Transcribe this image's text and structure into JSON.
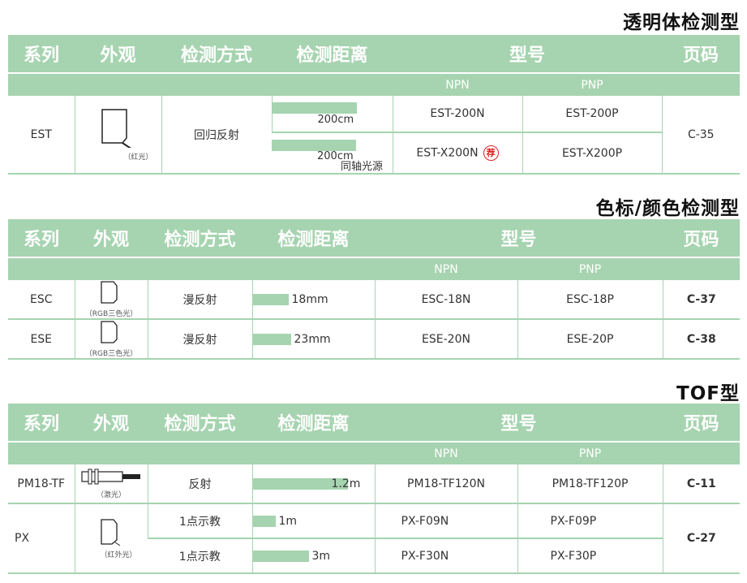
{
  "headers": {
    "series": "系列",
    "look": "外观",
    "method": "检测方式",
    "distance": "检测距离",
    "model": "型号",
    "page": "页码",
    "npn": "NPN",
    "pnp": "PNP"
  },
  "colors": {
    "header_green": "#a6d4b0",
    "recommend_red": "#d22"
  },
  "sections": [
    {
      "title": "透明体检测型",
      "rows": [
        {
          "series": "EST",
          "light": "（红光）",
          "method": "回归反射",
          "page": "C-35",
          "subrows": [
            {
              "distance": "200cm",
              "note": "",
              "npn": "EST-200N",
              "pnp": "EST-200P",
              "recommended": false
            },
            {
              "distance": "200cm",
              "note": "同轴光源",
              "npn": "EST-X200N",
              "pnp": "EST-X200P",
              "recommended": true,
              "badge": "荐"
            }
          ]
        }
      ]
    },
    {
      "title": "色标/颜色检测型",
      "rows": [
        {
          "series": "ESC",
          "light": "（RGB三色光）",
          "method": "漫反射",
          "distance": "18mm",
          "npn": "ESC-18N",
          "pnp": "ESC-18P",
          "page": "C-37"
        },
        {
          "series": "ESE",
          "light": "（RGB三色光）",
          "method": "漫反射",
          "distance": "23mm",
          "npn": "ESE-20N",
          "pnp": "ESE-20P",
          "page": "C-38"
        }
      ]
    },
    {
      "title": "TOF型",
      "rows": [
        {
          "series": "PM18-TF",
          "light": "（激光）",
          "method": "反射",
          "distance": "1.2m",
          "npn": "PM18-TF120N",
          "pnp": "PM18-TF120P",
          "page": "C-11"
        },
        {
          "series": "PX",
          "light": "（红外光）",
          "page": "C-27",
          "subrows": [
            {
              "method": "1点示教",
              "distance": "1m",
              "npn": "PX-F09N",
              "pnp": "PX-F09P"
            },
            {
              "method": "1点示教",
              "distance": "3m",
              "npn": "PX-F30N",
              "pnp": "PX-F30P"
            }
          ]
        }
      ]
    }
  ]
}
